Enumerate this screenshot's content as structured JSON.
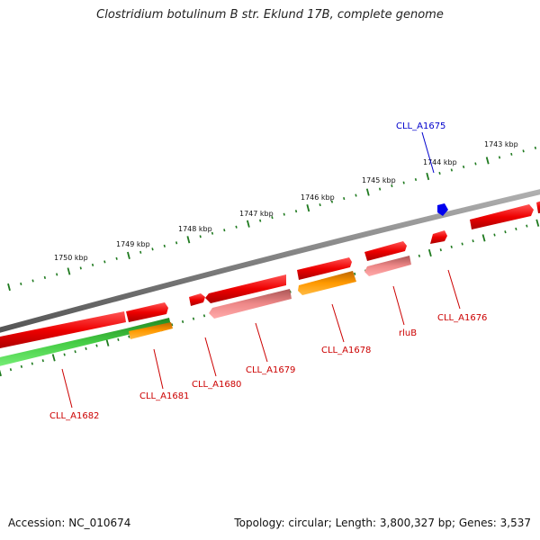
{
  "title": "Clostridium botulinum B str. Eklund 17B, complete genome",
  "footer": {
    "accession": "Accession: NC_010674",
    "summary": "Topology: circular; Length: 3,800,327 bp; Genes: 3,537"
  },
  "colors": {
    "backbone": "#808080",
    "ticks": "#1f7a1f",
    "gene_red": "#ee0000",
    "gene_pink": "#ee8888",
    "gene_orange": "#ff9900",
    "gene_green": "#44cc44",
    "gene_blue": "#0000ee",
    "label_red": "#cc0000",
    "label_blue": "#0000cc"
  },
  "scale_labels": [
    "1743 kbp",
    "1744 kbp",
    "1745 kbp",
    "1746 kbp",
    "1747 kbp",
    "1748 kbp",
    "1749 kbp",
    "1750 kbp"
  ],
  "gene_labels": [
    "CLL_A1675",
    "CLL_A1676",
    "rluB",
    "CLL_A1678",
    "CLL_A1679",
    "CLL_A1680",
    "CLL_A1681",
    "CLL_A1682"
  ]
}
